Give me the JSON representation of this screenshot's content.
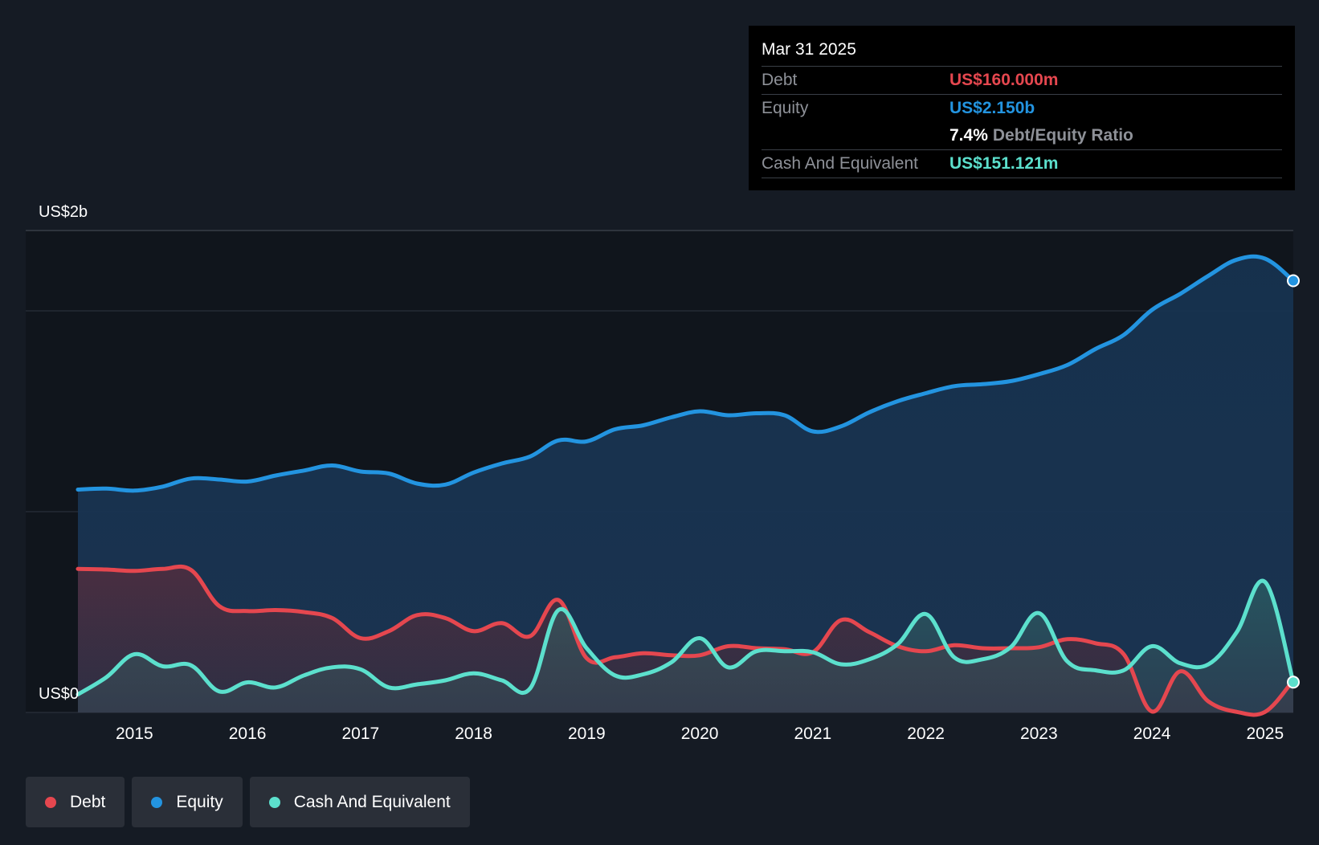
{
  "tooltip": {
    "date": "Mar 31 2025",
    "debt_label": "Debt",
    "debt_value": "US$160.000m",
    "equity_label": "Equity",
    "equity_value": "US$2.150b",
    "ratio_value": "7.4%",
    "ratio_label": "Debt/Equity Ratio",
    "cash_label": "Cash And Equivalent",
    "cash_value": "US$151.121m"
  },
  "legend": {
    "debt": "Debt",
    "equity": "Equity",
    "cash": "Cash And Equivalent"
  },
  "colors": {
    "debt": "#e5474f",
    "equity": "#2394e0",
    "cash": "#5ce0cd",
    "background": "#151b24"
  },
  "chart_data": {
    "type": "area",
    "title": "",
    "y_top_label": "US$2b",
    "y_bottom_label": "US$0",
    "ylim": [
      0,
      2400
    ],
    "x_range": [
      2014.5,
      2025.25
    ],
    "x_ticks": [
      "2015",
      "2016",
      "2017",
      "2018",
      "2019",
      "2020",
      "2021",
      "2022",
      "2023",
      "2024",
      "2025"
    ],
    "series": [
      {
        "name": "Equity",
        "x": [
          2014.5,
          2014.75,
          2015.0,
          2015.25,
          2015.5,
          2015.75,
          2016.0,
          2016.25,
          2016.5,
          2016.75,
          2017.0,
          2017.25,
          2017.5,
          2017.75,
          2018.0,
          2018.25,
          2018.5,
          2018.75,
          2019.0,
          2019.25,
          2019.5,
          2019.75,
          2020.0,
          2020.25,
          2020.5,
          2020.75,
          2021.0,
          2021.25,
          2021.5,
          2021.75,
          2022.0,
          2022.25,
          2022.5,
          2022.75,
          2023.0,
          2023.25,
          2023.5,
          2023.75,
          2024.0,
          2024.25,
          2024.5,
          2024.75,
          2025.0,
          2025.25
        ],
        "values": [
          1110,
          1115,
          1105,
          1125,
          1165,
          1160,
          1150,
          1180,
          1205,
          1230,
          1200,
          1190,
          1140,
          1135,
          1195,
          1240,
          1275,
          1355,
          1350,
          1410,
          1430,
          1470,
          1500,
          1480,
          1490,
          1480,
          1400,
          1425,
          1495,
          1550,
          1590,
          1625,
          1635,
          1650,
          1685,
          1730,
          1810,
          1880,
          2005,
          2085,
          2175,
          2255,
          2260,
          2150
        ]
      },
      {
        "name": "Debt",
        "x": [
          2014.5,
          2014.75,
          2015.0,
          2015.25,
          2015.5,
          2015.75,
          2016.0,
          2016.25,
          2016.5,
          2016.75,
          2017.0,
          2017.25,
          2017.5,
          2017.75,
          2018.0,
          2018.25,
          2018.5,
          2018.75,
          2019.0,
          2019.25,
          2019.5,
          2019.75,
          2020.0,
          2020.25,
          2020.5,
          2020.75,
          2021.0,
          2021.25,
          2021.5,
          2021.75,
          2022.0,
          2022.25,
          2022.5,
          2022.75,
          2023.0,
          2023.25,
          2023.5,
          2023.75,
          2024.0,
          2024.25,
          2024.5,
          2024.75,
          2025.0,
          2025.25
        ],
        "values": [
          715,
          712,
          705,
          715,
          710,
          530,
          505,
          510,
          500,
          470,
          370,
          405,
          485,
          470,
          405,
          445,
          380,
          560,
          270,
          275,
          295,
          285,
          285,
          330,
          320,
          315,
          300,
          460,
          400,
          330,
          305,
          335,
          320,
          320,
          325,
          365,
          345,
          290,
          5,
          205,
          55,
          3,
          3,
          160
        ]
      },
      {
        "name": "Cash And Equivalent",
        "x": [
          2014.5,
          2014.75,
          2015.0,
          2015.25,
          2015.5,
          2015.75,
          2016.0,
          2016.25,
          2016.5,
          2016.75,
          2017.0,
          2017.25,
          2017.5,
          2017.75,
          2018.0,
          2018.25,
          2018.5,
          2018.75,
          2019.0,
          2019.25,
          2019.5,
          2019.75,
          2020.0,
          2020.25,
          2020.5,
          2020.75,
          2021.0,
          2021.25,
          2021.5,
          2021.75,
          2022.0,
          2022.25,
          2022.5,
          2022.75,
          2023.0,
          2023.25,
          2023.5,
          2023.75,
          2024.0,
          2024.25,
          2024.5,
          2024.75,
          2025.0,
          2025.25
        ],
        "values": [
          90,
          175,
          290,
          230,
          235,
          105,
          150,
          125,
          185,
          225,
          215,
          125,
          140,
          160,
          195,
          160,
          120,
          510,
          320,
          185,
          190,
          250,
          370,
          225,
          305,
          305,
          300,
          240,
          265,
          340,
          490,
          275,
          265,
          325,
          495,
          255,
          210,
          210,
          330,
          245,
          240,
          400,
          650,
          151
        ]
      }
    ]
  }
}
